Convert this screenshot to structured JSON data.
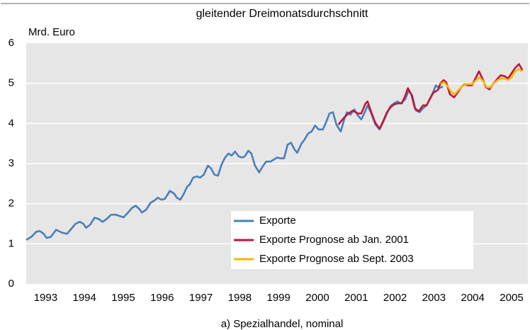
{
  "chart_data": {
    "type": "line",
    "title": "gleitender Dreimonatsdurchschnitt",
    "y_label": "Mrd. Euro",
    "caption": "a) Spezialhandel, nominal",
    "xlim": [
      1993,
      2005.92
    ],
    "ylim": [
      0,
      6
    ],
    "yticks": [
      0,
      1,
      2,
      3,
      4,
      5,
      6
    ],
    "xticks": [
      {
        "value": 1993.5,
        "label": "1993"
      },
      {
        "value": 1994.5,
        "label": "1994"
      },
      {
        "value": 1995.5,
        "label": "1995"
      },
      {
        "value": 1996.5,
        "label": "1996"
      },
      {
        "value": 1997.5,
        "label": "1997"
      },
      {
        "value": 1998.5,
        "label": "1998"
      },
      {
        "value": 1999.5,
        "label": "1999"
      },
      {
        "value": 2000.5,
        "label": "2000"
      },
      {
        "value": 2001.5,
        "label": "2001"
      },
      {
        "value": 2002.5,
        "label": "2002"
      },
      {
        "value": 2003.5,
        "label": "2003"
      },
      {
        "value": 2004.5,
        "label": "2004"
      },
      {
        "value": 2005.5,
        "label": "2005"
      }
    ],
    "grid": true,
    "legend": "lower right",
    "series": [
      {
        "name": "Exporte",
        "color": "#4a7ebb",
        "x": [
          1993.0,
          1993.14,
          1993.26,
          1993.35,
          1993.45,
          1993.52,
          1993.63,
          1993.77,
          1993.92,
          1994.05,
          1994.14,
          1994.27,
          1994.38,
          1994.47,
          1994.54,
          1994.65,
          1994.76,
          1994.87,
          1994.96,
          1995.05,
          1995.18,
          1995.29,
          1995.51,
          1995.64,
          1995.73,
          1995.82,
          1995.91,
          1995.98,
          1996.09,
          1996.2,
          1996.3,
          1996.39,
          1996.48,
          1996.57,
          1996.7,
          1996.81,
          1996.88,
          1996.97,
          1997.06,
          1997.14,
          1997.21,
          1997.3,
          1997.39,
          1997.48,
          1997.57,
          1997.68,
          1997.76,
          1997.85,
          1997.94,
          1998.03,
          1998.12,
          1998.21,
          1998.29,
          1998.38,
          1998.47,
          1998.56,
          1998.63,
          1998.72,
          1998.8,
          1998.89,
          1999.0,
          1999.09,
          1999.18,
          1999.29,
          1999.38,
          1999.46,
          1999.55,
          1999.64,
          1999.73,
          1999.82,
          1999.91,
          1999.98,
          2000.09,
          2000.17,
          2000.26,
          2000.35,
          2000.44,
          2000.53,
          2000.64,
          2000.72,
          2000.81,
          2000.9,
          2000.99,
          2001.1,
          2001.19,
          2001.26,
          2001.35,
          2001.45,
          2001.54,
          2001.63,
          2001.72,
          2001.79,
          2001.88,
          2001.99,
          2002.1,
          2002.19,
          2002.29,
          2002.38,
          2002.47,
          2002.56,
          2002.65,
          2002.76,
          2002.85,
          2002.94,
          2003.03,
          2003.13,
          2003.22,
          2003.31,
          2003.4,
          2003.49,
          2003.55,
          2003.64,
          2003.73
        ],
        "values": [
          1.1,
          1.18,
          1.3,
          1.32,
          1.25,
          1.15,
          1.17,
          1.35,
          1.28,
          1.25,
          1.35,
          1.5,
          1.55,
          1.5,
          1.4,
          1.48,
          1.65,
          1.62,
          1.55,
          1.6,
          1.72,
          1.73,
          1.66,
          1.8,
          1.9,
          1.95,
          1.87,
          1.78,
          1.85,
          2.02,
          2.08,
          2.15,
          2.1,
          2.12,
          2.32,
          2.25,
          2.15,
          2.1,
          2.25,
          2.42,
          2.48,
          2.65,
          2.68,
          2.65,
          2.72,
          2.95,
          2.88,
          2.72,
          2.7,
          2.97,
          3.15,
          3.25,
          3.2,
          3.3,
          3.18,
          3.15,
          3.18,
          3.32,
          3.25,
          2.95,
          2.78,
          2.93,
          3.05,
          3.05,
          3.1,
          3.15,
          3.13,
          3.13,
          3.47,
          3.52,
          3.35,
          3.27,
          3.5,
          3.6,
          3.75,
          3.8,
          3.95,
          3.85,
          3.85,
          4.02,
          4.25,
          4.28,
          3.97,
          3.8,
          4.1,
          4.28,
          4.22,
          4.35,
          4.2,
          4.1,
          4.28,
          4.45,
          4.27,
          3.98,
          3.85,
          4.03,
          4.25,
          4.43,
          4.5,
          4.55,
          4.5,
          4.6,
          4.82,
          4.7,
          4.33,
          4.28,
          4.38,
          4.45,
          4.62,
          4.8,
          4.95,
          4.88,
          4.92
        ]
      },
      {
        "name": "Exporte Prognose ab Jan. 2001",
        "color": "#c0163a",
        "x": [
          2001.04,
          2001.19,
          2001.3,
          2001.41,
          2001.54,
          2001.63,
          2001.74,
          2001.79,
          2001.88,
          2001.99,
          2002.1,
          2002.19,
          2002.29,
          2002.4,
          2002.49,
          2002.58,
          2002.67,
          2002.76,
          2002.83,
          2002.92,
          2003.01,
          2003.11,
          2003.22,
          2003.31,
          2003.4,
          2003.49,
          2003.6,
          2003.67,
          2003.75,
          2003.82,
          2003.91,
          2004.02,
          2004.11,
          2004.2,
          2004.29,
          2004.38,
          2004.48,
          2004.57,
          2004.66,
          2004.75,
          2004.84,
          2004.93,
          2005.02,
          2005.11,
          2005.22,
          2005.32,
          2005.41,
          2005.5,
          2005.59,
          2005.69,
          2005.78
        ],
        "values": [
          3.97,
          4.15,
          4.25,
          4.32,
          4.25,
          4.25,
          4.5,
          4.55,
          4.3,
          4.02,
          3.87,
          4.05,
          4.28,
          4.42,
          4.48,
          4.5,
          4.5,
          4.68,
          4.88,
          4.72,
          4.38,
          4.3,
          4.45,
          4.45,
          4.62,
          4.77,
          4.83,
          5.0,
          5.08,
          5.02,
          4.73,
          4.65,
          4.77,
          4.9,
          4.98,
          4.95,
          4.95,
          5.12,
          5.3,
          5.12,
          4.9,
          4.85,
          4.98,
          5.08,
          5.2,
          5.18,
          5.12,
          5.25,
          5.38,
          5.48,
          5.33
        ]
      },
      {
        "name": "Exporte Prognose ab Sept. 2003",
        "color": "#f5b800",
        "x": [
          2003.67,
          2003.76,
          2003.86,
          2003.95,
          2004.04,
          2004.13,
          2004.22,
          2004.31,
          2004.4,
          2004.49,
          2004.59,
          2004.68,
          2004.77,
          2004.86,
          2004.95,
          2005.04,
          2005.13,
          2005.22,
          2005.32,
          2005.41,
          2005.5,
          2005.59,
          2005.69,
          2005.78
        ],
        "values": [
          4.98,
          5.03,
          4.92,
          4.78,
          4.73,
          4.83,
          4.92,
          4.98,
          4.98,
          4.98,
          5.08,
          5.15,
          5.05,
          4.9,
          4.9,
          5.0,
          5.07,
          5.12,
          5.12,
          5.08,
          5.15,
          5.3,
          5.35,
          5.3
        ]
      }
    ]
  }
}
